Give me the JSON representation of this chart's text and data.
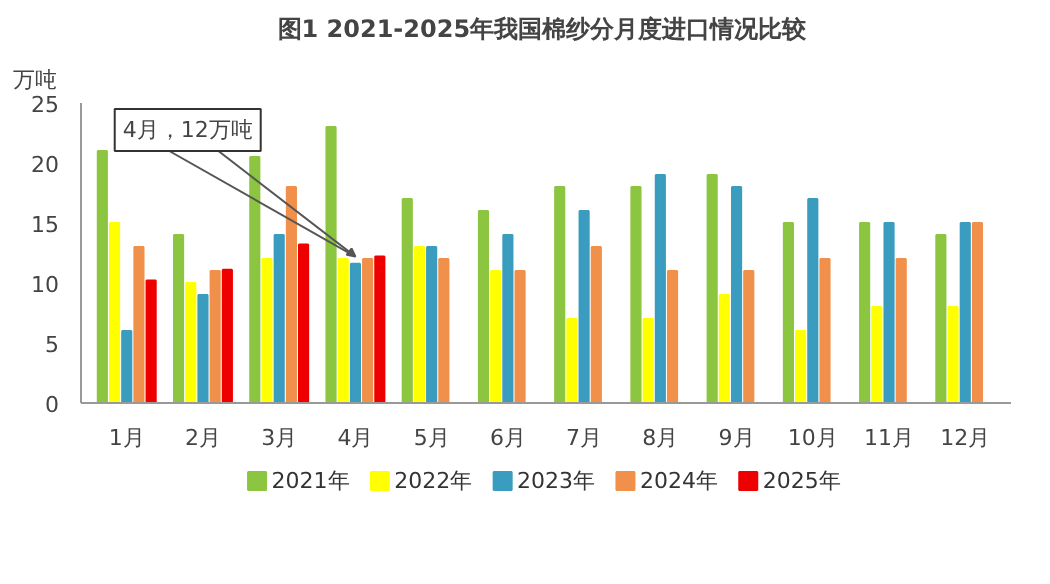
{
  "chart_data": {
    "type": "bar",
    "title": "图1  2021-2025年我国棉纱分月度进口情况比较",
    "ylabel": "万吨",
    "categories": [
      "1月",
      "2月",
      "3月",
      "4月",
      "5月",
      "6月",
      "7月",
      "8月",
      "9月",
      "10月",
      "11月",
      "12月"
    ],
    "series": [
      {
        "name": "2021年",
        "color": "#8cc540",
        "values": [
          21,
          14,
          20.5,
          23,
          17,
          16,
          18,
          18,
          19,
          15,
          15,
          14
        ]
      },
      {
        "name": "2022年",
        "color": "#ffff00",
        "values": [
          15,
          10,
          12,
          12,
          13,
          11,
          7,
          7,
          9,
          6,
          8,
          8
        ]
      },
      {
        "name": "2023年",
        "color": "#3a9cbf",
        "values": [
          6,
          9,
          14,
          11.6,
          13,
          14,
          16,
          19,
          18,
          17,
          15,
          15
        ]
      },
      {
        "name": "2024年",
        "color": "#f0904a",
        "values": [
          13,
          11,
          18,
          12,
          12,
          11,
          13,
          11,
          11,
          12,
          12,
          15
        ]
      },
      {
        "name": "2025年",
        "color": "#ee0000",
        "values": [
          10.2,
          11.1,
          13.2,
          12.2,
          null,
          null,
          null,
          null,
          null,
          null,
          null,
          null
        ]
      }
    ],
    "ylim": [
      0,
      25
    ],
    "yticks": [
      0,
      5,
      10,
      15,
      20,
      25
    ],
    "legend": "bottom",
    "annotations": [
      {
        "text": "4月，12万吨",
        "x": "4月",
        "y": 12.2
      }
    ]
  }
}
